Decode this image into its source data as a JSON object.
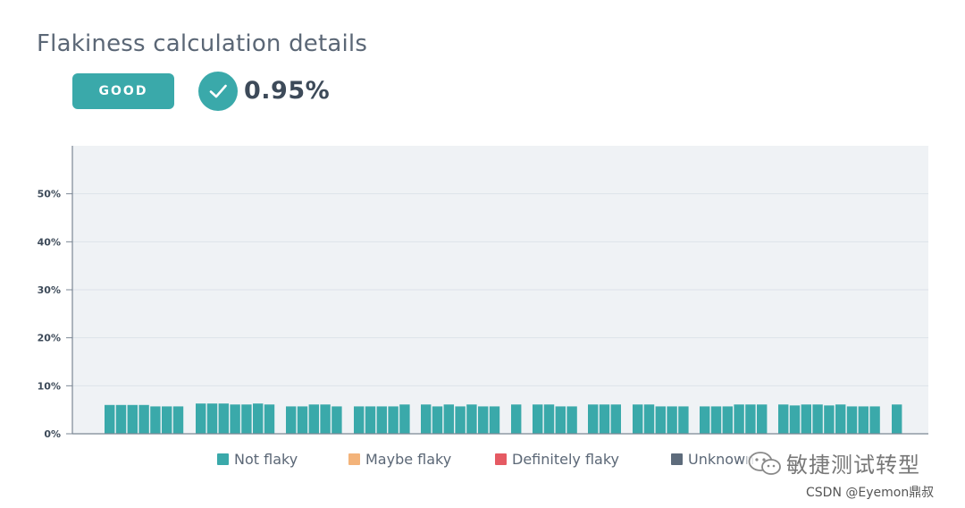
{
  "header": {
    "title": "Flakiness calculation details",
    "status_label": "GOOD",
    "score": "0.95%"
  },
  "icons": {
    "status": "check-circle-icon",
    "watermark": "wechat-icon"
  },
  "colors": {
    "teal": "#3aa9aa",
    "maybe": "#f3b37a",
    "definitely": "#e55a63",
    "unknown": "#5d6b7b",
    "plot_bg": "#eff2f5",
    "axis": "#7b8794",
    "grid": "#dde3e9"
  },
  "chart_data": {
    "type": "bar",
    "ylim": [
      0,
      60
    ],
    "ytick_values": [
      0,
      10,
      20,
      30,
      40,
      50
    ],
    "ytick_labels": [
      "0%",
      "10%",
      "20%",
      "30%",
      "40%",
      "50%"
    ],
    "grid": true,
    "legend_placement": "bottom",
    "series": [
      {
        "name": "Not flaky",
        "color": "#3aa9aa",
        "groups": [
          [
            6,
            6,
            6,
            6,
            5.7,
            5.7,
            5.7
          ],
          [
            6.3,
            6.3,
            6.3,
            6.1,
            6.1,
            6.3,
            6.1
          ],
          [
            5.7,
            5.7,
            6.1,
            6.1,
            5.7
          ],
          [
            5.7,
            5.7,
            5.7,
            5.7,
            6.1
          ],
          [
            6.1,
            5.7,
            6.1,
            5.7,
            6.1,
            5.7,
            5.7
          ],
          [
            6.1
          ],
          [
            6.1,
            6.1,
            5.7,
            5.7
          ],
          [
            6.1,
            6.1,
            6.1
          ],
          [
            6.1,
            6.1,
            5.7,
            5.7,
            5.7
          ],
          [
            5.7,
            5.7,
            5.7,
            6.1,
            6.1,
            6.1
          ],
          [
            6.1,
            5.9,
            6.1,
            6.1,
            5.9,
            6.1,
            5.7,
            5.7,
            5.7
          ],
          [
            6.1
          ]
        ]
      }
    ],
    "legend": [
      {
        "label": "Not flaky",
        "color": "#3aa9aa"
      },
      {
        "label": "Maybe flaky",
        "color": "#f3b37a"
      },
      {
        "label": "Definitely flaky",
        "color": "#e55a63"
      },
      {
        "label": "Unknown",
        "color": "#5d6b7b"
      }
    ]
  },
  "watermark": {
    "text": "敏捷测试转型",
    "credit": "CSDN @Eyemon鼎叔"
  }
}
